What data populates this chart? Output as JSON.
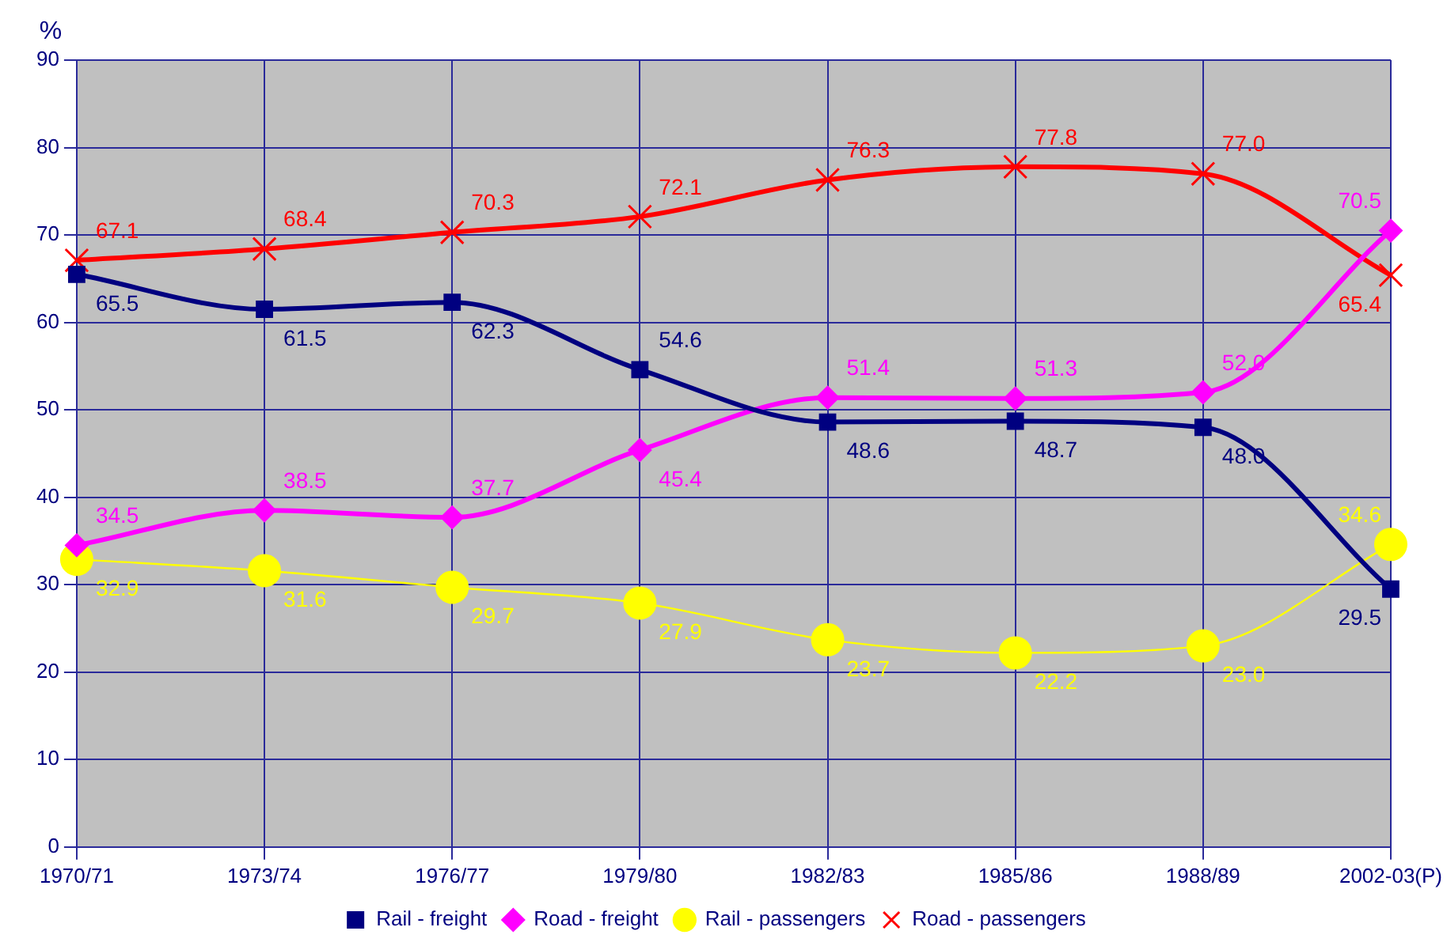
{
  "chart_data": {
    "type": "line",
    "ylabel": "%",
    "categories": [
      "1970/71",
      "1973/74",
      "1976/77",
      "1979/80",
      "1982/83",
      "1985/86",
      "1988/89",
      "2002-03(P)"
    ],
    "series": [
      {
        "name": "Rail - freight",
        "color": "#000080",
        "marker": "square",
        "values": [
          65.5,
          61.5,
          62.3,
          54.6,
          48.6,
          48.7,
          48.0,
          29.5
        ],
        "value_labels": [
          "65.5",
          "61.5",
          "62.3",
          "54.6",
          "48.6",
          "48.7",
          "48.0",
          "29.5"
        ]
      },
      {
        "name": "Road - freight",
        "color": "#ff00ff",
        "marker": "diamond",
        "values": [
          34.5,
          38.5,
          37.7,
          45.4,
          51.4,
          51.3,
          52.0,
          70.5
        ],
        "value_labels": [
          "34.5",
          "38.5",
          "37.7",
          "45.4",
          "51.4",
          "51.3",
          "52.0",
          "70.5"
        ]
      },
      {
        "name": "Rail - passengers",
        "color": "#ffff00",
        "marker": "circle",
        "values": [
          32.9,
          31.6,
          29.7,
          27.9,
          23.7,
          22.2,
          23.0,
          34.6
        ],
        "value_labels": [
          "32.9",
          "31.6",
          "29.7",
          "27.9",
          "23.7",
          "22.2",
          "23.0",
          "34.6"
        ]
      },
      {
        "name": "Road - passengers",
        "color": "#ff0000",
        "marker": "cross",
        "values": [
          67.1,
          68.4,
          70.3,
          72.1,
          76.3,
          77.8,
          77.0,
          65.4
        ],
        "value_labels": [
          "67.1",
          "68.4",
          "70.3",
          "72.1",
          "76.3",
          "77.8",
          "77.0",
          "65.4"
        ]
      }
    ],
    "ylim": [
      0,
      90
    ],
    "yticks": [
      0,
      10,
      20,
      30,
      40,
      50,
      60,
      70,
      80,
      90
    ],
    "grid": true,
    "legend": "bottom"
  }
}
